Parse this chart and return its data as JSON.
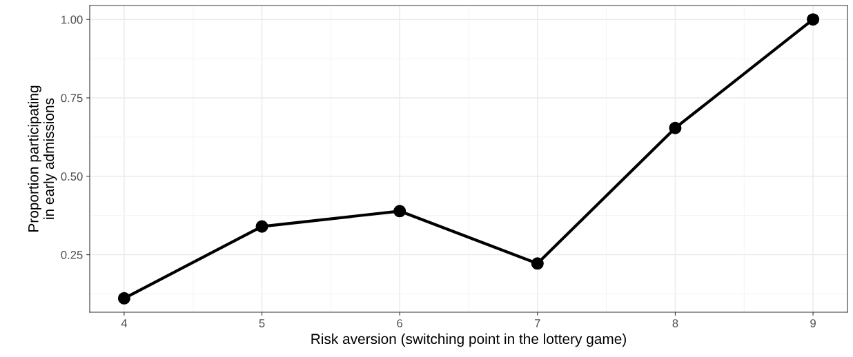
{
  "chart_data": {
    "type": "line",
    "xlabel": "Risk aversion (switching point in the lottery game)",
    "ylabel": "Proportion participating\nin early admissions",
    "x": [
      4,
      5,
      6,
      7,
      8,
      9
    ],
    "series": [
      {
        "color": "#000000",
        "values": [
          0.111,
          0.34,
          0.389,
          0.222,
          0.654,
          1.0
        ]
      }
    ],
    "xlim": [
      3.75,
      9.25
    ],
    "xticks": [
      4,
      5,
      6,
      7,
      8,
      9
    ],
    "ylim": [
      0.0667,
      1.0444
    ],
    "yticks": [
      {
        "value": 0.25,
        "label": "0.25"
      },
      {
        "value": 0.5,
        "label": "0.50"
      },
      {
        "value": 0.75,
        "label": "0.75"
      },
      {
        "value": 1.0,
        "label": "1.00"
      }
    ],
    "grid": true,
    "marker": "circle",
    "line_style": "solid",
    "legend": false
  }
}
